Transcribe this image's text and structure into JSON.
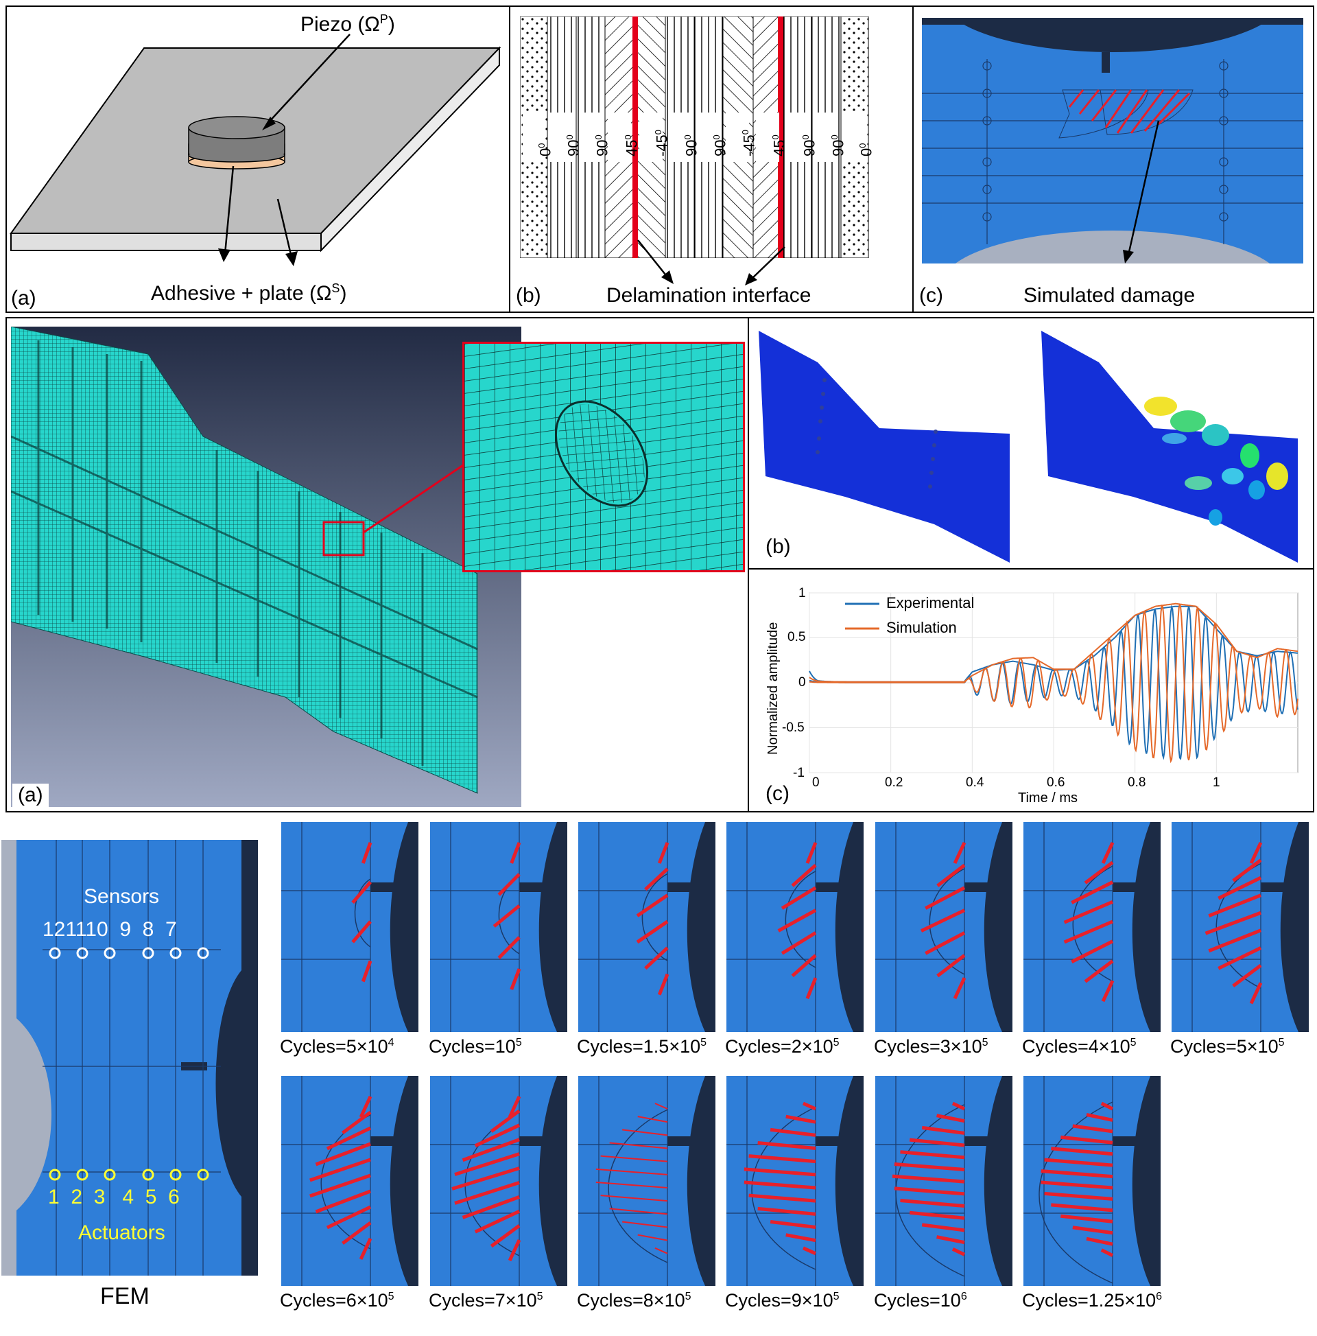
{
  "top_row": {
    "panel_a": {
      "label": "(a)",
      "piezo_label": "Piezo (Ω",
      "piezo_sup": "P",
      "piezo_close": ")",
      "adhesive_label": "Adhesive + plate (Ω",
      "adhesive_sup": "S",
      "adhesive_close": ")"
    },
    "panel_b": {
      "label": "(b)",
      "caption": "Delamination interface",
      "ply_angles": [
        "0",
        "90",
        "90",
        "45",
        "-45",
        "90",
        "90",
        "-45",
        "45",
        "90",
        "90",
        "0"
      ],
      "degree_sup": "0"
    },
    "panel_c": {
      "label": "(c)",
      "caption": "Simulated damage"
    }
  },
  "middle_row": {
    "panel_a": {
      "label": "(a)"
    },
    "panel_b": {
      "label": "(b)"
    },
    "panel_c": {
      "label": "(c)",
      "chart_data": {
        "type": "line",
        "xlabel": "Time / ms",
        "ylabel": "Normalized amplitude",
        "xlim": [
          0,
          1.2
        ],
        "ylim": [
          -1,
          1
        ],
        "x_ticks": [
          "0",
          "0.2",
          "0.4",
          "0.6",
          "0.8",
          "1"
        ],
        "y_ticks": [
          "1",
          "0.5",
          "0",
          "-0.5",
          "-1"
        ],
        "grid": true,
        "legend_position": "top-left",
        "series": [
          {
            "name": "Experimental",
            "color": "#1f6fb4",
            "x": [
              0,
              0.02,
              0.1,
              0.38,
              0.4,
              0.45,
              0.5,
              0.55,
              0.6,
              0.65,
              0.7,
              0.75,
              0.8,
              0.85,
              0.9,
              0.95,
              1.0,
              1.05,
              1.1,
              1.15,
              1.2
            ],
            "envelope": [
              0.12,
              0.03,
              0.01,
              0.01,
              0.12,
              0.2,
              0.24,
              0.2,
              0.14,
              0.15,
              0.3,
              0.5,
              0.75,
              0.82,
              0.85,
              0.85,
              0.6,
              0.35,
              0.3,
              0.35,
              0.33
            ]
          },
          {
            "name": "Simulation",
            "color": "#e5692a",
            "x": [
              0,
              0.02,
              0.1,
              0.38,
              0.4,
              0.45,
              0.5,
              0.55,
              0.6,
              0.65,
              0.7,
              0.75,
              0.8,
              0.85,
              0.9,
              0.95,
              1.0,
              1.05,
              1.1,
              1.15,
              1.2
            ],
            "envelope": [
              0.05,
              0.02,
              0.01,
              0.01,
              0.08,
              0.2,
              0.27,
              0.28,
              0.15,
              0.15,
              0.35,
              0.55,
              0.75,
              0.85,
              0.88,
              0.85,
              0.65,
              0.35,
              0.28,
              0.38,
              0.35
            ]
          }
        ]
      }
    }
  },
  "bottom_row": {
    "fem": {
      "caption": "FEM",
      "sensors_title": "Sensors",
      "sensor_numbers": "121110  9  8  7",
      "actuator_numbers": "1  2  3   4  5  6",
      "actuators_title": "Actuators"
    },
    "snapshots": [
      {
        "prefix": "Cycles=5×10",
        "sup": "4"
      },
      {
        "prefix": "Cycles=10",
        "sup": "5"
      },
      {
        "prefix": "Cycles=1.5×10",
        "sup": "5"
      },
      {
        "prefix": "Cycles=2×10",
        "sup": "5"
      },
      {
        "prefix": "Cycles=3×10",
        "sup": "5"
      },
      {
        "prefix": "Cycles=4×10",
        "sup": "5"
      },
      {
        "prefix": "Cycles=5×10",
        "sup": "5"
      },
      {
        "prefix": "Cycles=6×10",
        "sup": "5"
      },
      {
        "prefix": "Cycles=7×10",
        "sup": "5"
      },
      {
        "prefix": "Cycles=8×10",
        "sup": "5"
      },
      {
        "prefix": "Cycles=9×10",
        "sup": "5"
      },
      {
        "prefix": "Cycles=10",
        "sup": "6"
      },
      {
        "prefix": "Cycles=1.25×10",
        "sup": "6"
      }
    ]
  },
  "colors": {
    "fem_blue": "#2f7ed8",
    "dark_navy": "#1c2b45",
    "damage_red": "#e8202a",
    "mesh_cyan": "#27d6cc",
    "sensor_yellow": "#ffff33",
    "highlight_red": "#e3001b"
  }
}
